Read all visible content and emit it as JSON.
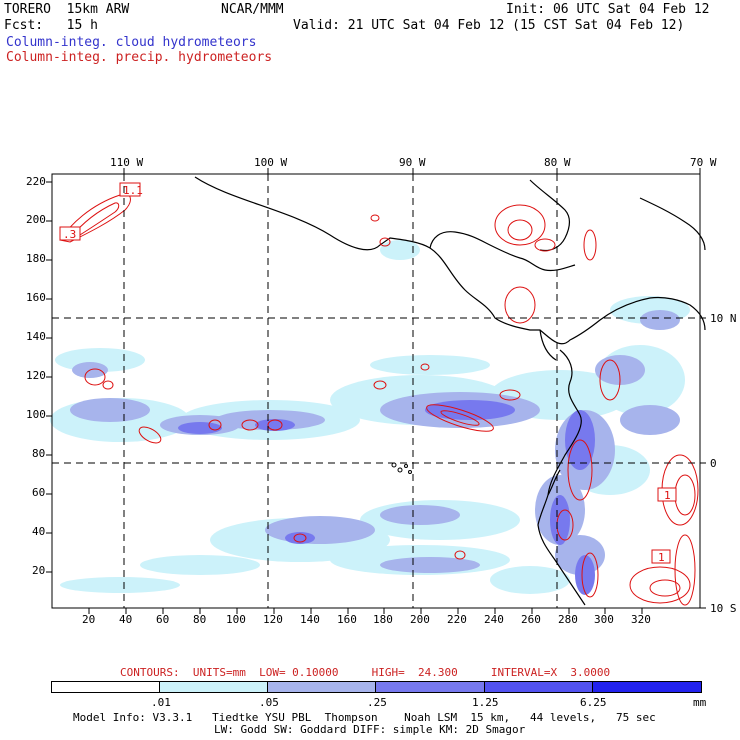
{
  "header": {
    "model": "TORERO  15km ARW",
    "center": "NCAR/MMM",
    "init": "Init: 06 UTC Sat 04 Feb 12",
    "fcst": "Fcst:   15 h",
    "valid": "Valid: 21 UTC Sat 04 Feb 12 (15 CST Sat 04 Feb 12)",
    "line_cloud": "Column-integ. cloud hydrometeors",
    "line_precip": "Column-integ. precip. hydrometeors"
  },
  "map": {
    "lon_labels": [
      "110 W",
      "100 W",
      "90 W",
      "80 W",
      "70 W"
    ],
    "lat_labels": [
      "10 N",
      "0",
      "10 S"
    ],
    "y_ticks": [
      "220",
      "200",
      "180",
      "160",
      "140",
      "120",
      "100",
      "80",
      "60",
      "40",
      "20"
    ],
    "x_ticks": [
      "20",
      "40",
      "60",
      "80",
      "100",
      "120",
      "140",
      "160",
      "180",
      "200",
      "220",
      "240",
      "260",
      "280",
      "300",
      "320"
    ],
    "contour_labels": [
      "1.1",
      ".3",
      "1",
      "1"
    ]
  },
  "contours_info": "CONTOURS:  UNITS=mm  LOW= 0.10000     HIGH=  24.300     INTERVAL=X  3.0000",
  "colorbar": {
    "labels": [
      ".01",
      ".05",
      ".25",
      "1.25",
      "6.25",
      "mm"
    ],
    "colors": [
      "#ffffff",
      "#ccf2fa",
      "#a7b4ec",
      "#7779ee",
      "#5252f0",
      "#2222ee"
    ]
  },
  "footer": {
    "line1": "Model Info: V3.3.1   Tiedtke YSU PBL  Thompson    Noah LSM  15 km,   44 levels,   75 sec",
    "line2": "LW: Godd SW: Goddard DIFF: simple KM: 2D Smagor"
  }
}
